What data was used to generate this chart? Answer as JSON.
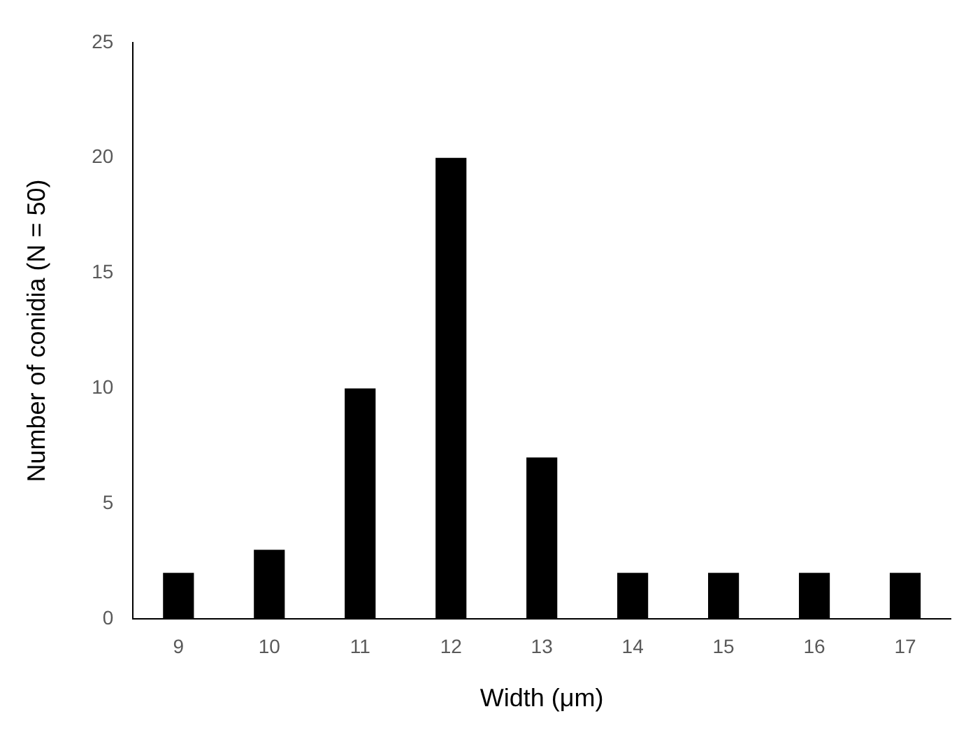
{
  "chart_data": {
    "type": "bar",
    "xlabel": "Width (μm)",
    "ylabel": "Number of conidia (N = 50)",
    "categories": [
      "9",
      "10",
      "11",
      "12",
      "13",
      "14",
      "15",
      "16",
      "17"
    ],
    "values": [
      2,
      3,
      10,
      20,
      7,
      2,
      2,
      2,
      2
    ],
    "color": "#000000",
    "ylim": [
      0,
      25
    ],
    "yticks": [
      0,
      5,
      10,
      15,
      20,
      25
    ],
    "grid": false,
    "legend": false
  }
}
